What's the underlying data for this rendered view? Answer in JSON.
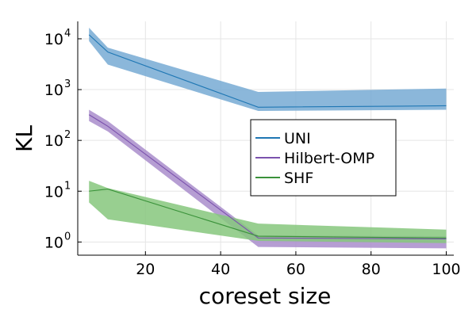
{
  "chart_data": {
    "type": "line",
    "title": "",
    "xlabel": "coreset size",
    "ylabel": "KL",
    "xlim": [
      2,
      102
    ],
    "ylim": [
      0.55,
      22000
    ],
    "yscale": "log",
    "xticks": [
      20,
      40,
      60,
      80,
      100
    ],
    "xtick_labels": [
      "20",
      "40",
      "60",
      "80",
      "100"
    ],
    "yticks": [
      1,
      10,
      100,
      1000,
      10000
    ],
    "ytick_labels": [
      "10",
      "10",
      "10",
      "10",
      "10"
    ],
    "ytick_exponents": [
      "0",
      "1",
      "2",
      "3",
      "4"
    ],
    "grid": true,
    "legend_position": "center-right",
    "x": [
      5,
      10,
      50,
      100
    ],
    "series": [
      {
        "name": "UNI",
        "color": "#1f77b4",
        "band_color": "#77aad3",
        "values": [
          12000,
          5500,
          450,
          480
        ],
        "lower": [
          9000,
          3100,
          380,
          400
        ],
        "upper": [
          16500,
          6700,
          900,
          1050
        ]
      },
      {
        "name": "Hilbert-OMP",
        "color": "#7b52ad",
        "band_color": "#a98dcb",
        "values": [
          320,
          190,
          1.2,
          1.15
        ],
        "lower": [
          240,
          150,
          0.8,
          0.75
        ],
        "upper": [
          400,
          240,
          1.35,
          1.3
        ]
      },
      {
        "name": "SHF",
        "color": "#3a923a",
        "band_color": "#86c77c",
        "values": [
          10,
          11,
          1.3,
          1.2
        ],
        "lower": [
          6,
          2.8,
          1.05,
          0.95
        ],
        "upper": [
          16,
          11.5,
          2.3,
          1.75
        ]
      }
    ]
  }
}
